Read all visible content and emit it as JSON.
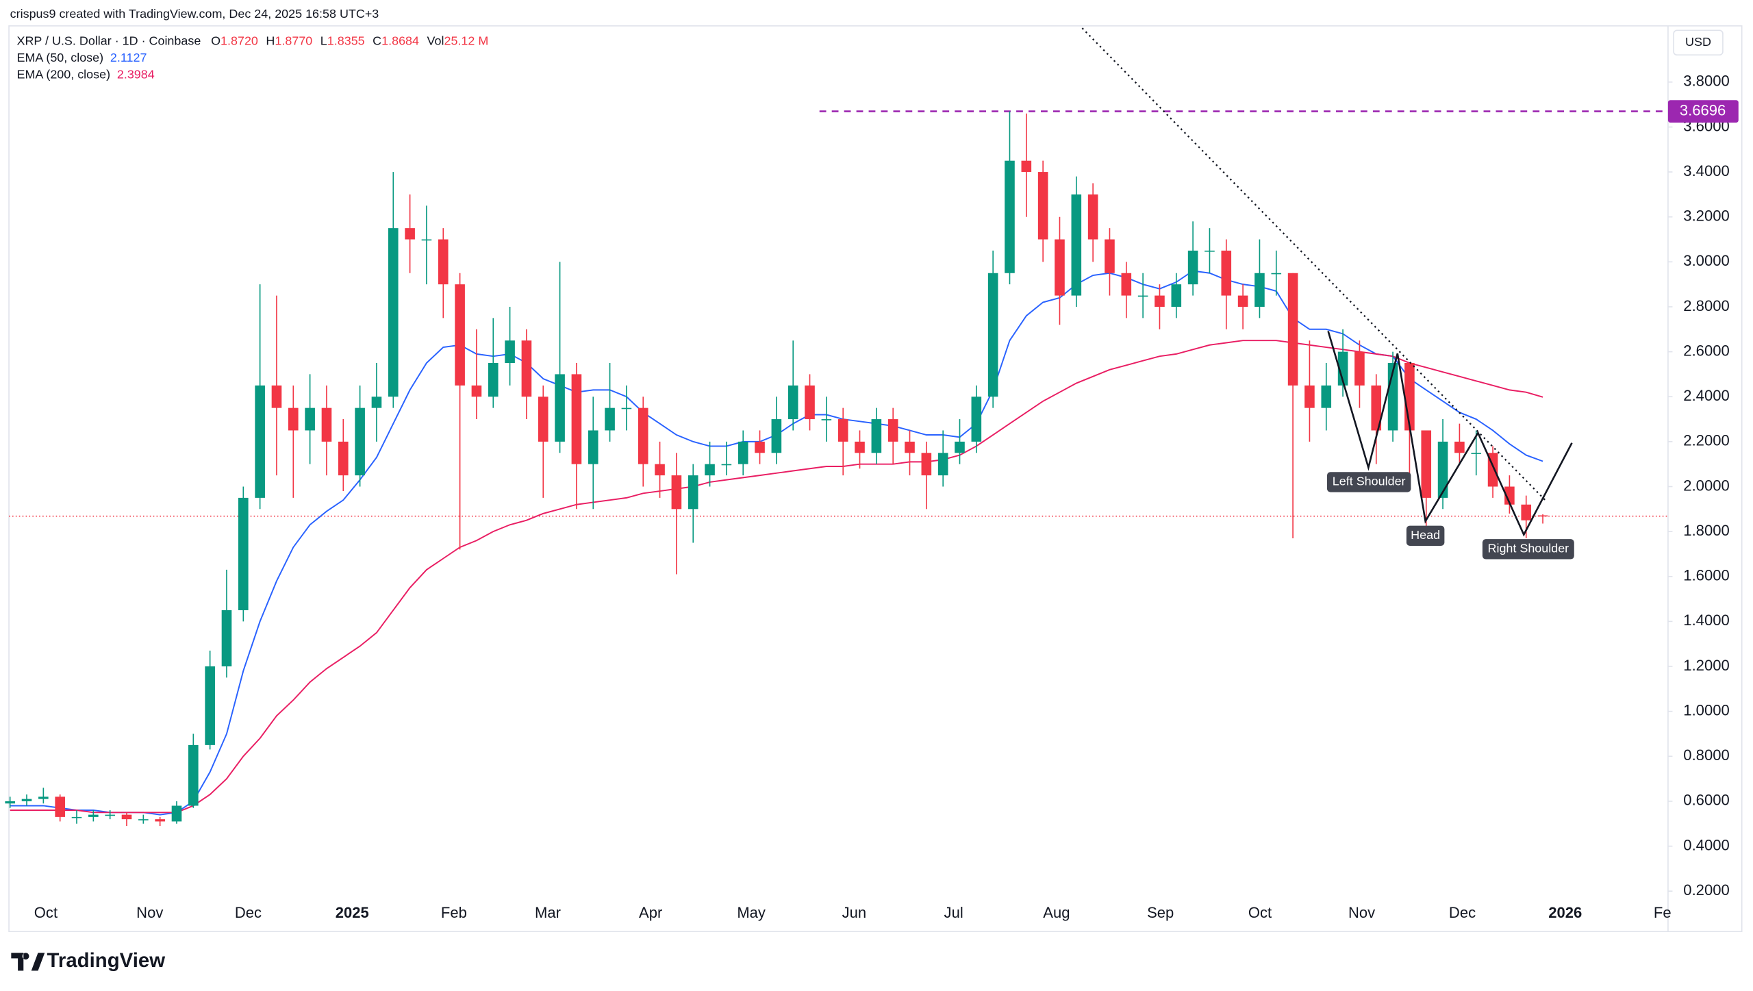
{
  "watermark": "crispus9 created with TradingView.com, Dec 24, 2025 16:58 UTC+3",
  "logo": "TradingView",
  "chart_data": {
    "type": "candlestick",
    "symbol": "XRP / U.S. Dollar · 1D · Coinbase",
    "ohlc_legend": [
      {
        "key": "O",
        "value": "1.8720"
      },
      {
        "key": "H",
        "value": "1.8770"
      },
      {
        "key": "L",
        "value": "1.8355"
      },
      {
        "key": "C",
        "value": "1.8684"
      },
      {
        "key": "Vol",
        "value": "25.12 M"
      }
    ],
    "currency": "USD",
    "x_labels": [
      "Oct",
      "Nov",
      "Dec",
      "2025",
      "Feb",
      "Mar",
      "Apr",
      "May",
      "Jun",
      "Jul",
      "Aug",
      "Sep",
      "Oct",
      "Nov",
      "Dec",
      "2026",
      "Fe"
    ],
    "up_color": "#089981",
    "down_color": "#f23645",
    "open": [
      0.59,
      0.6,
      0.61,
      0.62,
      0.53,
      0.53,
      0.54,
      0.54,
      0.52,
      0.52,
      0.51,
      0.58,
      0.85,
      1.2,
      1.45,
      1.95,
      2.45,
      2.35,
      2.25,
      2.35,
      2.2,
      2.05,
      2.35,
      2.4,
      3.15,
      3.1,
      3.1,
      2.9,
      2.45,
      2.4,
      2.55,
      2.65,
      2.4,
      2.2,
      2.5,
      2.1,
      2.25,
      2.35,
      2.35,
      2.1,
      2.05,
      1.9,
      2.05,
      2.1,
      2.1,
      2.2,
      2.15,
      2.3,
      2.45,
      2.3,
      2.3,
      2.2,
      2.15,
      2.3,
      2.2,
      2.15,
      2.05,
      2.15,
      2.2,
      2.4,
      2.95,
      3.45,
      3.4,
      3.1,
      2.85,
      3.3,
      3.1,
      2.95,
      2.85,
      2.85,
      2.8,
      2.9,
      3.05,
      3.05,
      2.85,
      2.8,
      2.95,
      2.95,
      2.45,
      2.35,
      2.45,
      2.6,
      2.45,
      2.25,
      2.55,
      2.25,
      1.95,
      2.2,
      2.15,
      2.15,
      2.0,
      1.92,
      1.872
    ],
    "high": [
      0.62,
      0.63,
      0.66,
      0.63,
      0.56,
      0.56,
      0.56,
      0.55,
      0.54,
      0.53,
      0.6,
      0.9,
      1.27,
      1.63,
      2.0,
      2.9,
      2.85,
      2.45,
      2.5,
      2.45,
      2.3,
      2.45,
      2.55,
      3.4,
      3.3,
      3.25,
      3.15,
      2.95,
      2.7,
      2.75,
      2.8,
      2.7,
      2.45,
      3.0,
      2.55,
      2.4,
      2.55,
      2.45,
      2.4,
      2.2,
      2.15,
      2.1,
      2.2,
      2.2,
      2.25,
      2.25,
      2.4,
      2.65,
      2.5,
      2.4,
      2.35,
      2.25,
      2.35,
      2.35,
      2.25,
      2.2,
      2.25,
      2.3,
      2.45,
      3.05,
      3.67,
      3.66,
      3.45,
      3.2,
      3.38,
      3.35,
      3.15,
      3.0,
      2.95,
      2.9,
      2.95,
      3.18,
      3.15,
      3.1,
      2.9,
      3.1,
      3.05,
      2.95,
      2.65,
      2.55,
      2.7,
      2.65,
      2.5,
      2.6,
      2.55,
      2.25,
      2.3,
      2.28,
      2.25,
      2.18,
      2.05,
      1.96,
      1.877
    ],
    "low": [
      0.57,
      0.58,
      0.59,
      0.51,
      0.5,
      0.51,
      0.52,
      0.49,
      0.5,
      0.49,
      0.5,
      0.57,
      0.83,
      1.15,
      1.4,
      1.9,
      2.05,
      1.95,
      2.1,
      2.05,
      1.98,
      2.0,
      2.2,
      2.35,
      2.95,
      2.9,
      2.75,
      1.72,
      2.3,
      2.35,
      2.45,
      2.3,
      1.95,
      2.15,
      1.9,
      1.9,
      2.2,
      2.25,
      2.0,
      1.95,
      1.61,
      1.75,
      2.0,
      2.05,
      2.05,
      2.1,
      2.1,
      2.25,
      2.25,
      2.2,
      2.05,
      2.08,
      2.1,
      2.1,
      2.05,
      1.9,
      2.0,
      2.1,
      2.15,
      2.35,
      2.9,
      3.2,
      3.0,
      2.72,
      2.8,
      3.0,
      2.85,
      2.75,
      2.75,
      2.7,
      2.75,
      2.85,
      2.95,
      2.7,
      2.7,
      2.75,
      2.85,
      1.77,
      2.2,
      2.25,
      2.4,
      2.35,
      2.1,
      2.2,
      2.05,
      1.82,
      1.9,
      2.1,
      2.05,
      1.95,
      1.88,
      1.77,
      1.8355
    ],
    "close": [
      0.6,
      0.61,
      0.62,
      0.53,
      0.53,
      0.54,
      0.54,
      0.52,
      0.52,
      0.51,
      0.58,
      0.85,
      1.2,
      1.45,
      1.95,
      2.45,
      2.35,
      2.25,
      2.35,
      2.2,
      2.05,
      2.35,
      2.4,
      3.15,
      3.1,
      3.1,
      2.9,
      2.45,
      2.4,
      2.55,
      2.65,
      2.4,
      2.2,
      2.5,
      2.1,
      2.25,
      2.35,
      2.35,
      2.1,
      2.05,
      1.9,
      2.05,
      2.1,
      2.1,
      2.2,
      2.15,
      2.3,
      2.45,
      2.3,
      2.3,
      2.2,
      2.15,
      2.3,
      2.2,
      2.15,
      2.05,
      2.15,
      2.2,
      2.4,
      2.95,
      3.45,
      3.4,
      3.1,
      2.85,
      3.3,
      3.1,
      2.95,
      2.85,
      2.85,
      2.8,
      2.9,
      3.05,
      3.05,
      2.85,
      2.8,
      2.95,
      2.95,
      2.45,
      2.35,
      2.45,
      2.6,
      2.45,
      2.25,
      2.55,
      2.25,
      1.95,
      2.2,
      2.15,
      2.15,
      2.0,
      1.92,
      1.85,
      1.8684
    ],
    "series": [
      {
        "name": "EMA (50, close)",
        "value_label": "2.1127",
        "color": "#2962ff",
        "values": [
          0.58,
          0.58,
          0.58,
          0.57,
          0.56,
          0.56,
          0.55,
          0.55,
          0.55,
          0.54,
          0.55,
          0.6,
          0.73,
          0.9,
          1.18,
          1.4,
          1.58,
          1.73,
          1.83,
          1.89,
          1.94,
          2.03,
          2.13,
          2.28,
          2.43,
          2.55,
          2.62,
          2.63,
          2.59,
          2.58,
          2.59,
          2.55,
          2.48,
          2.45,
          2.42,
          2.43,
          2.43,
          2.4,
          2.33,
          2.28,
          2.23,
          2.2,
          2.18,
          2.18,
          2.2,
          2.2,
          2.23,
          2.28,
          2.32,
          2.32,
          2.3,
          2.29,
          2.28,
          2.27,
          2.25,
          2.23,
          2.23,
          2.22,
          2.28,
          2.43,
          2.65,
          2.76,
          2.82,
          2.84,
          2.9,
          2.94,
          2.95,
          2.93,
          2.9,
          2.88,
          2.91,
          2.96,
          2.95,
          2.92,
          2.9,
          2.89,
          2.87,
          2.75,
          2.7,
          2.7,
          2.68,
          2.63,
          2.59,
          2.58,
          2.48,
          2.43,
          2.38,
          2.33,
          2.3,
          2.25,
          2.19,
          2.14,
          2.1127
        ]
      },
      {
        "name": "EMA (200, close)",
        "value_label": "2.3984",
        "color": "#e91e63",
        "values": [
          0.56,
          0.56,
          0.56,
          0.56,
          0.56,
          0.55,
          0.55,
          0.55,
          0.55,
          0.55,
          0.55,
          0.58,
          0.63,
          0.7,
          0.8,
          0.88,
          0.98,
          1.05,
          1.13,
          1.19,
          1.24,
          1.29,
          1.35,
          1.45,
          1.55,
          1.63,
          1.68,
          1.73,
          1.76,
          1.8,
          1.83,
          1.85,
          1.88,
          1.9,
          1.92,
          1.93,
          1.94,
          1.95,
          1.97,
          1.98,
          1.99,
          2.0,
          2.02,
          2.03,
          2.04,
          2.05,
          2.06,
          2.07,
          2.08,
          2.09,
          2.09,
          2.1,
          2.1,
          2.1,
          2.11,
          2.11,
          2.12,
          2.14,
          2.18,
          2.23,
          2.28,
          2.33,
          2.38,
          2.42,
          2.46,
          2.49,
          2.52,
          2.54,
          2.56,
          2.58,
          2.59,
          2.61,
          2.63,
          2.64,
          2.65,
          2.65,
          2.65,
          2.64,
          2.63,
          2.62,
          2.61,
          2.6,
          2.59,
          2.58,
          2.55,
          2.53,
          2.51,
          2.49,
          2.47,
          2.45,
          2.43,
          2.42,
          2.3984
        ]
      }
    ],
    "ylim": [
      0.02,
      4.05
    ],
    "yticks": [
      {
        "value": 0.2,
        "label": "0.2000"
      },
      {
        "value": 0.4,
        "label": "0.4000"
      },
      {
        "value": 0.6,
        "label": "0.6000"
      },
      {
        "value": 0.8,
        "label": "0.8000"
      },
      {
        "value": 1.0,
        "label": "1.0000"
      },
      {
        "value": 1.2,
        "label": "1.2000"
      },
      {
        "value": 1.4,
        "label": "1.4000"
      },
      {
        "value": 1.6,
        "label": "1.6000"
      },
      {
        "value": 1.8,
        "label": "1.8000"
      },
      {
        "value": 2.0,
        "label": "2.0000"
      },
      {
        "value": 2.2,
        "label": "2.2000"
      },
      {
        "value": 2.4,
        "label": "2.4000"
      },
      {
        "value": 2.6,
        "label": "2.6000"
      },
      {
        "value": 2.8,
        "label": "2.8000"
      },
      {
        "value": 3.0,
        "label": "3.0000"
      },
      {
        "value": 3.2,
        "label": "3.2000"
      },
      {
        "value": 3.4,
        "label": "3.4000"
      },
      {
        "value": 3.6,
        "label": "3.6000"
      },
      {
        "value": 3.8,
        "label": "3.8000"
      }
    ],
    "resistance": 3.6696,
    "resistance_color": "#9c27b0",
    "pattern_labels": [
      "Left Shoulder",
      "Head",
      "Right Shoulder"
    ]
  }
}
